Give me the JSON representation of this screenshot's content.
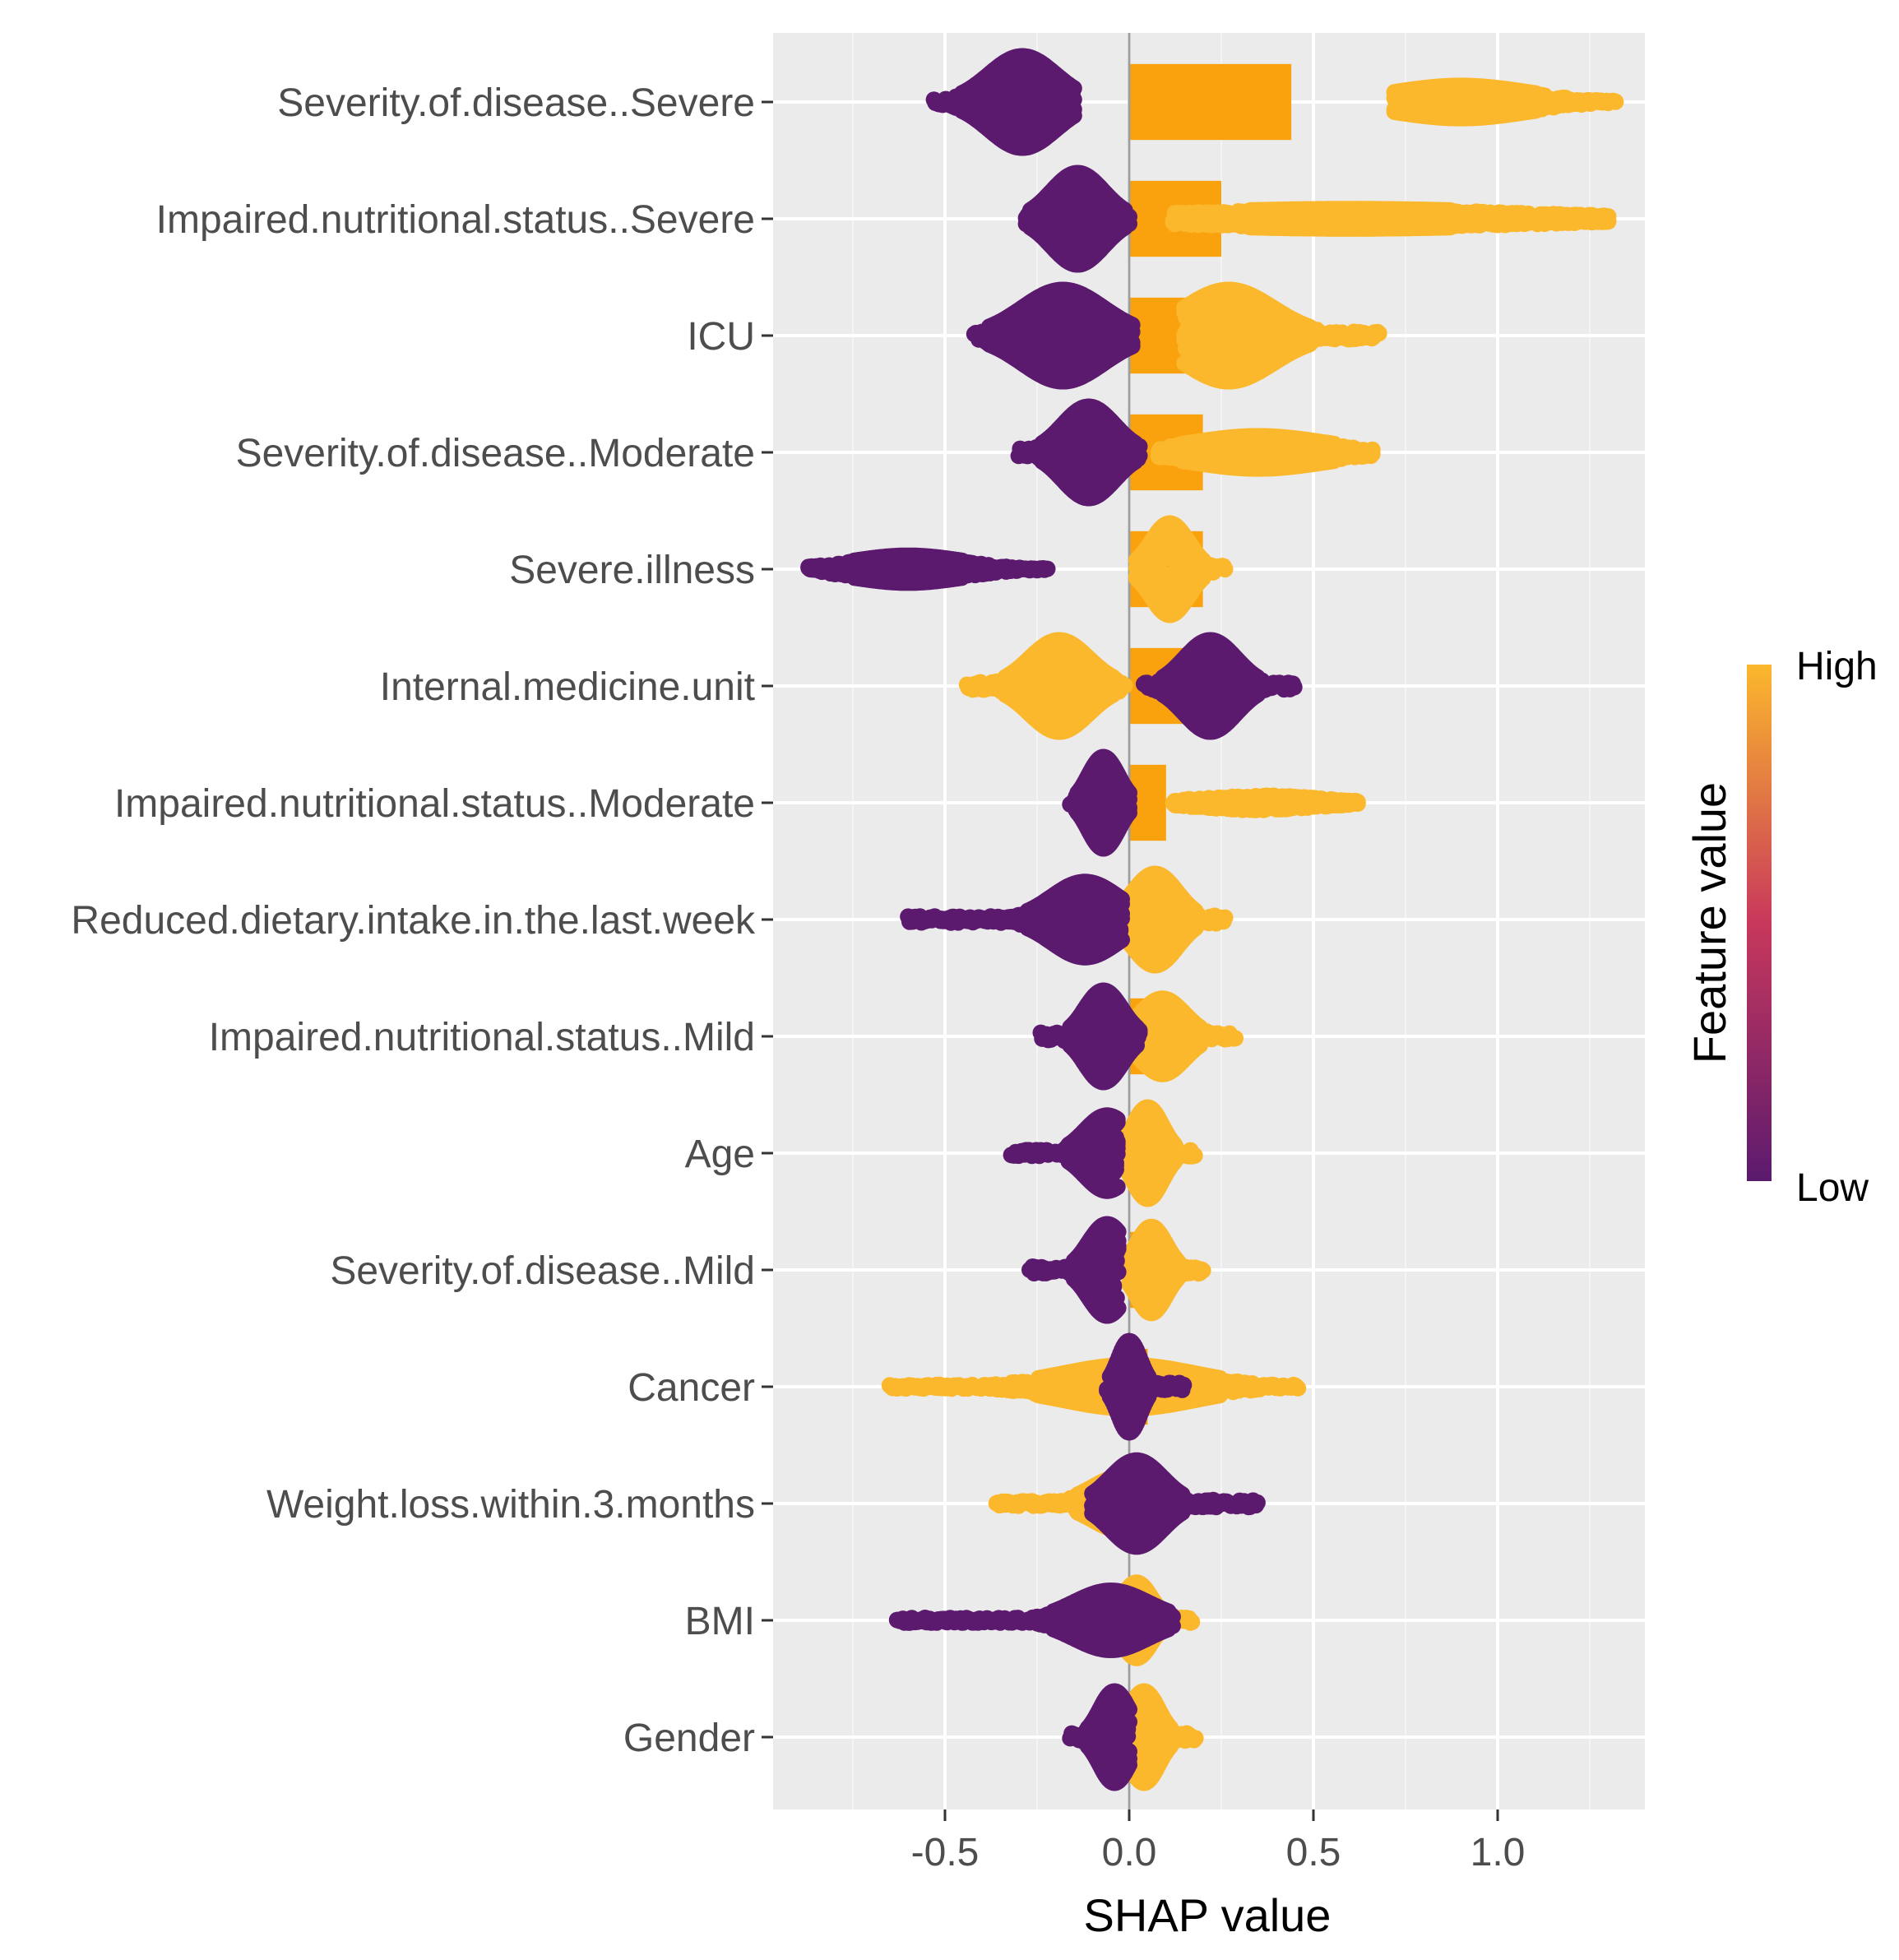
{
  "chart_data": {
    "type": "scatter",
    "subtype": "shap-beeswarm-with-mean-bars",
    "xlabel": "SHAP value",
    "ylabel": "",
    "xlim": [
      -0.97,
      1.4
    ],
    "x_ticks": [
      -0.5,
      0.0,
      0.5,
      1.0
    ],
    "x_tick_labels": [
      "-0.5",
      "0.0",
      "0.5",
      "1.0"
    ],
    "grid": true,
    "legend": {
      "title": "Feature value",
      "high_label": "High",
      "low_label": "Low",
      "position": "right",
      "colors": {
        "low": "#5b1a6e",
        "mid": "#c8385c",
        "high": "#fbb82c"
      }
    },
    "bar_color": "#f9a20d",
    "features": [
      {
        "name": "Severity.of.disease..Severe",
        "mean_abs_shap": 0.44,
        "low": {
          "min": -0.53,
          "max": -0.15,
          "center": -0.29,
          "spread": 0.09,
          "thickness": 0.85
        },
        "high": {
          "min": 0.72,
          "max": 1.32,
          "center": 0.9,
          "spread": 0.18,
          "thickness": 0.3
        }
      },
      {
        "name": "Impaired.nutritional.status..Severe",
        "mean_abs_shap": 0.25,
        "low": {
          "min": -0.28,
          "max": 0.0,
          "center": -0.14,
          "spread": 0.07,
          "thickness": 0.85
        },
        "high": {
          "min": 0.12,
          "max": 1.3,
          "center": 0.6,
          "spread": 0.5,
          "thickness": 0.18
        }
      },
      {
        "name": "ICU",
        "mean_abs_shap": 0.23,
        "low": {
          "min": -0.42,
          "max": 0.01,
          "center": -0.18,
          "spread": 0.11,
          "thickness": 0.85
        },
        "high": {
          "min": 0.15,
          "max": 0.68,
          "center": 0.27,
          "spread": 0.12,
          "thickness": 0.85
        }
      },
      {
        "name": "Severity.of.disease..Moderate",
        "mean_abs_shap": 0.2,
        "low": {
          "min": -0.3,
          "max": 0.03,
          "center": -0.11,
          "spread": 0.07,
          "thickness": 0.85
        },
        "high": {
          "min": 0.08,
          "max": 0.66,
          "center": 0.35,
          "spread": 0.18,
          "thickness": 0.3
        }
      },
      {
        "name": "Severe.illness",
        "mean_abs_shap": 0.2,
        "low": {
          "min": -0.87,
          "max": -0.22,
          "center": -0.6,
          "spread": 0.15,
          "thickness": 0.25
        },
        "high": {
          "min": 0.02,
          "max": 0.26,
          "center": 0.11,
          "spread": 0.05,
          "thickness": 0.85
        }
      },
      {
        "name": "Internal.medicine.unit",
        "mean_abs_shap": 0.16,
        "low": {
          "min": 0.04,
          "max": 0.45,
          "center": 0.22,
          "spread": 0.07,
          "thickness": 0.85
        },
        "high": {
          "min": -0.44,
          "max": -0.01,
          "center": -0.19,
          "spread": 0.08,
          "thickness": 0.85
        }
      },
      {
        "name": "Impaired.nutritional.status..Moderate",
        "mean_abs_shap": 0.1,
        "low": {
          "min": -0.16,
          "max": 0.0,
          "center": -0.07,
          "spread": 0.04,
          "thickness": 0.85
        },
        "high": {
          "min": 0.12,
          "max": 0.62,
          "center": 0.35,
          "spread": 0.16,
          "thickness": 0.15
        }
      },
      {
        "name": "Reduced.dietary.intake.in.the.last.week",
        "mean_abs_shap": 0.08,
        "low": {
          "min": -0.6,
          "max": -0.02,
          "center": -0.12,
          "spread": 0.09,
          "thickness": 0.7
        },
        "high": {
          "min": -0.02,
          "max": 0.26,
          "center": 0.07,
          "spread": 0.06,
          "thickness": 0.85
        }
      },
      {
        "name": "Impaired.nutritional.status..Mild",
        "mean_abs_shap": 0.06,
        "low": {
          "min": -0.24,
          "max": 0.03,
          "center": -0.07,
          "spread": 0.05,
          "thickness": 0.85
        },
        "high": {
          "min": 0.0,
          "max": 0.29,
          "center": 0.09,
          "spread": 0.06,
          "thickness": 0.7
        }
      },
      {
        "name": "Age",
        "mean_abs_shap": 0.05,
        "low": {
          "min": -0.32,
          "max": -0.03,
          "center": -0.06,
          "spread": 0.06,
          "thickness": 0.7
        },
        "high": {
          "min": -0.03,
          "max": 0.18,
          "center": 0.05,
          "spread": 0.04,
          "thickness": 0.85
        }
      },
      {
        "name": "Severity.of.disease..Mild",
        "mean_abs_shap": 0.06,
        "low": {
          "min": -0.27,
          "max": -0.03,
          "center": -0.06,
          "spread": 0.05,
          "thickness": 0.85
        },
        "high": {
          "min": 0.0,
          "max": 0.2,
          "center": 0.06,
          "spread": 0.04,
          "thickness": 0.8
        }
      },
      {
        "name": "Cancer",
        "mean_abs_shap": 0.05,
        "low": {
          "min": -0.06,
          "max": 0.15,
          "center": 0.0,
          "spread": 0.03,
          "thickness": 0.85
        },
        "high": {
          "min": -0.65,
          "max": 0.46,
          "center": 0.0,
          "spread": 0.18,
          "thickness": 0.4
        }
      },
      {
        "name": "Weight.loss.within.3.months",
        "mean_abs_shap": 0.03,
        "low": {
          "min": -0.1,
          "max": 0.35,
          "center": 0.02,
          "spread": 0.07,
          "thickness": 0.8
        },
        "high": {
          "min": -0.36,
          "max": 0.15,
          "center": -0.02,
          "spread": 0.08,
          "thickness": 0.5
        }
      },
      {
        "name": "BMI",
        "mean_abs_shap": 0.03,
        "low": {
          "min": -0.63,
          "max": 0.12,
          "center": -0.05,
          "spread": 0.1,
          "thickness": 0.55
        },
        "high": {
          "min": -0.05,
          "max": 0.17,
          "center": 0.02,
          "spread": 0.04,
          "thickness": 0.7
        }
      },
      {
        "name": "Gender",
        "mean_abs_shap": 0.02,
        "low": {
          "min": -0.16,
          "max": 0.0,
          "center": -0.04,
          "spread": 0.04,
          "thickness": 0.85
        },
        "high": {
          "min": -0.02,
          "max": 0.18,
          "center": 0.04,
          "spread": 0.04,
          "thickness": 0.85
        }
      }
    ]
  }
}
